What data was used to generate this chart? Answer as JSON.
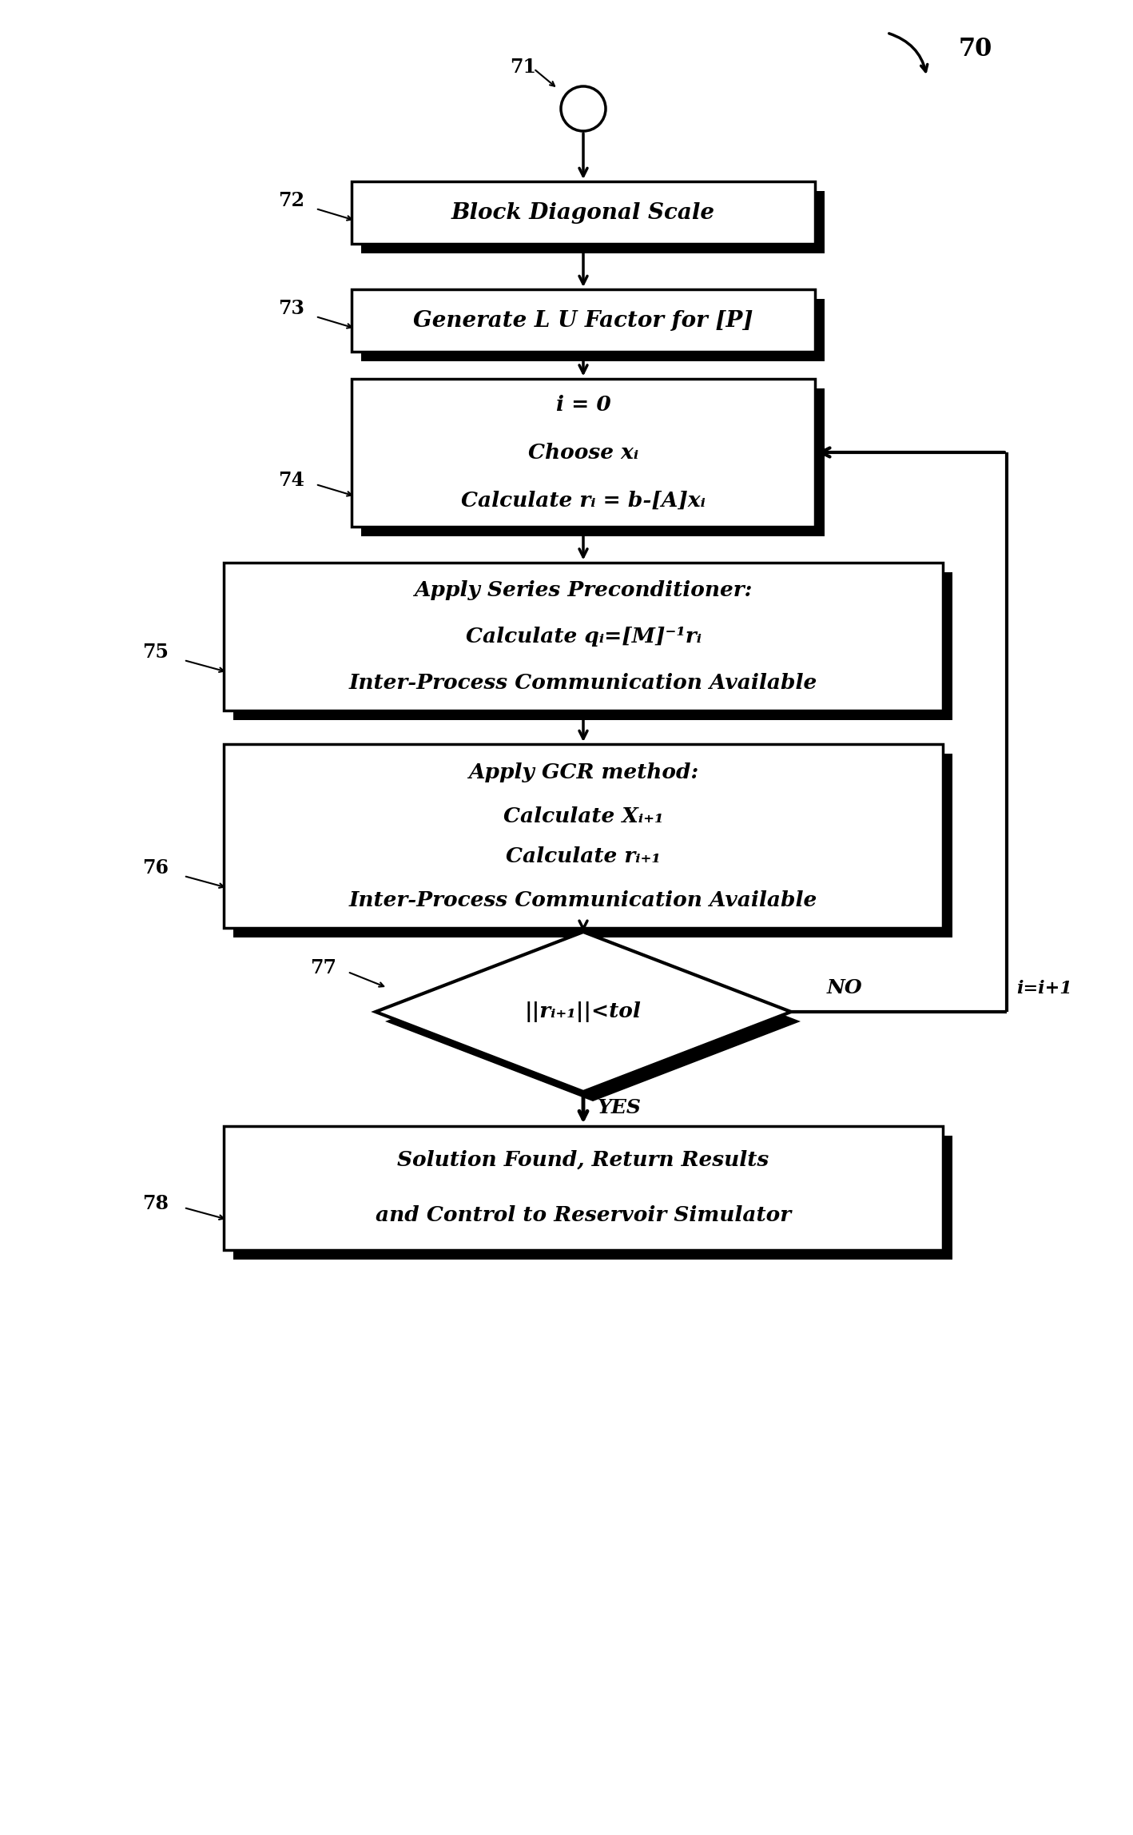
{
  "bg_color": "#ffffff",
  "fig_width": 14.18,
  "fig_height": 22.96,
  "label_70": "70",
  "label_71": "71",
  "label_72": "72",
  "label_73": "73",
  "label_74": "74",
  "label_75": "75",
  "label_76": "76",
  "label_77": "77",
  "label_78": "78",
  "box72_text": "Block Diagonal Scale",
  "box73_text": "Generate L U Factor for [P]",
  "box74_line1": "i = 0",
  "box74_line2": "Choose xᵢ",
  "box74_line3": "Calculate rᵢ = b-[A]xᵢ",
  "box75_line1": "Apply Series Preconditioner:",
  "box75_line2": "Calculate qᵢ=[M]⁻¹rᵢ",
  "box75_line3": "Inter-Process Communication Available",
  "box76_line1": "Apply GCR method:",
  "box76_line2": "Calculate Xᵢ₊₁",
  "box76_line3": "Calculate rᵢ₊₁",
  "box76_line4": "Inter-Process Communication Available",
  "diamond77_text": "||rᵢ₊₁||<tol",
  "box78_line1": "Solution Found, Return Results",
  "box78_line2": "and Control to Reservoir Simulator",
  "no_label": "NO",
  "no_sublabel": "i=i+1",
  "yes_label": "YES"
}
